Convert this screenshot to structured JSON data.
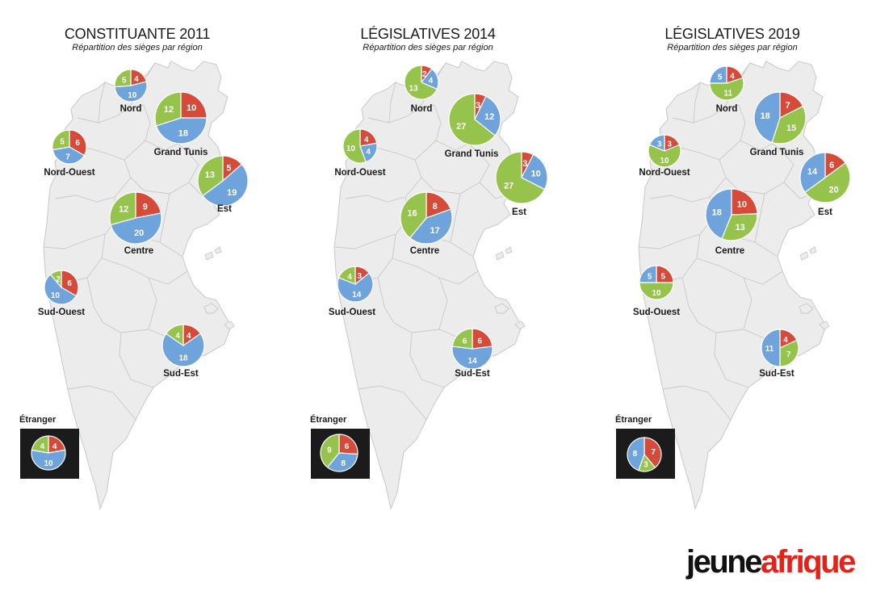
{
  "colors": {
    "green": "#95c34b",
    "blue": "#6fa3db",
    "red": "#d64a3a",
    "map_fill": "#ececec",
    "map_stroke": "#c8c8c8",
    "box": "#1b1b1b"
  },
  "logo": {
    "part1": "jeune",
    "part2": "afrique"
  },
  "maps": [
    {
      "title": "CONSTITUANTE 2011",
      "subtitle": "Répartition des sièges par région",
      "regions": [
        {
          "name": "Nord",
          "slices": [
            {
              "party": "red",
              "value": 4
            },
            {
              "party": "blue",
              "value": 10
            },
            {
              "party": "green",
              "value": 5
            }
          ]
        },
        {
          "name": "Grand Tunis",
          "slices": [
            {
              "party": "red",
              "value": 10
            },
            {
              "party": "blue",
              "value": 18
            },
            {
              "party": "green",
              "value": 12
            }
          ]
        },
        {
          "name": "Nord-Ouest",
          "slices": [
            {
              "party": "red",
              "value": 6
            },
            {
              "party": "blue",
              "value": 7
            },
            {
              "party": "green",
              "value": 5
            }
          ]
        },
        {
          "name": "Est",
          "slices": [
            {
              "party": "red",
              "value": 5
            },
            {
              "party": "blue",
              "value": 19
            },
            {
              "party": "green",
              "value": 13
            }
          ]
        },
        {
          "name": "Centre",
          "slices": [
            {
              "party": "red",
              "value": 9
            },
            {
              "party": "blue",
              "value": 20
            },
            {
              "party": "green",
              "value": 12
            }
          ]
        },
        {
          "name": "Sud-Ouest",
          "slices": [
            {
              "party": "red",
              "value": 6
            },
            {
              "party": "blue",
              "value": 10
            },
            {
              "party": "green",
              "value": 2
            }
          ]
        },
        {
          "name": "Sud-Est",
          "slices": [
            {
              "party": "red",
              "value": 4
            },
            {
              "party": "blue",
              "value": 18
            },
            {
              "party": "green",
              "value": 4
            }
          ]
        },
        {
          "name": "Étranger",
          "slices": [
            {
              "party": "red",
              "value": 4
            },
            {
              "party": "blue",
              "value": 10
            },
            {
              "party": "green",
              "value": 4
            }
          ]
        }
      ]
    },
    {
      "title": "LÉGISLATIVES 2014",
      "subtitle": "Répartition des sièges par région",
      "regions": [
        {
          "name": "Nord",
          "slices": [
            {
              "party": "red",
              "value": 2
            },
            {
              "party": "blue",
              "value": 4
            },
            {
              "party": "green",
              "value": 13
            }
          ]
        },
        {
          "name": "Grand Tunis",
          "slices": [
            {
              "party": "red",
              "value": 3
            },
            {
              "party": "blue",
              "value": 12
            },
            {
              "party": "green",
              "value": 27
            }
          ]
        },
        {
          "name": "Nord-Ouest",
          "slices": [
            {
              "party": "red",
              "value": 4
            },
            {
              "party": "blue",
              "value": 4
            },
            {
              "party": "green",
              "value": 10
            }
          ]
        },
        {
          "name": "Est",
          "slices": [
            {
              "party": "red",
              "value": 3
            },
            {
              "party": "blue",
              "value": 10
            },
            {
              "party": "green",
              "value": 27
            }
          ]
        },
        {
          "name": "Centre",
          "slices": [
            {
              "party": "red",
              "value": 8
            },
            {
              "party": "blue",
              "value": 17
            },
            {
              "party": "green",
              "value": 16
            }
          ]
        },
        {
          "name": "Sud-Ouest",
          "slices": [
            {
              "party": "red",
              "value": 3
            },
            {
              "party": "blue",
              "value": 14
            },
            {
              "party": "green",
              "value": 4
            }
          ]
        },
        {
          "name": "Sud-Est",
          "slices": [
            {
              "party": "red",
              "value": 6
            },
            {
              "party": "blue",
              "value": 14
            },
            {
              "party": "green",
              "value": 6
            }
          ]
        },
        {
          "name": "Étranger",
          "slices": [
            {
              "party": "red",
              "value": 6
            },
            {
              "party": "blue",
              "value": 8
            },
            {
              "party": "green",
              "value": 9
            }
          ]
        }
      ]
    },
    {
      "title": "LÉGISLATIVES 2019",
      "subtitle": "Répartition des sièges par région",
      "regions": [
        {
          "name": "Nord",
          "slices": [
            {
              "party": "red",
              "value": 4
            },
            {
              "party": "green",
              "value": 11
            },
            {
              "party": "blue",
              "value": 5
            }
          ]
        },
        {
          "name": "Grand Tunis",
          "slices": [
            {
              "party": "red",
              "value": 7
            },
            {
              "party": "green",
              "value": 15
            },
            {
              "party": "blue",
              "value": 18
            }
          ]
        },
        {
          "name": "Nord-Ouest",
          "slices": [
            {
              "party": "red",
              "value": 3
            },
            {
              "party": "green",
              "value": 10
            },
            {
              "party": "blue",
              "value": 3
            }
          ]
        },
        {
          "name": "Est",
          "slices": [
            {
              "party": "red",
              "value": 6
            },
            {
              "party": "green",
              "value": 20
            },
            {
              "party": "blue",
              "value": 14
            }
          ]
        },
        {
          "name": "Centre",
          "slices": [
            {
              "party": "red",
              "value": 10
            },
            {
              "party": "green",
              "value": 13
            },
            {
              "party": "blue",
              "value": 18
            }
          ]
        },
        {
          "name": "Sud-Ouest",
          "slices": [
            {
              "party": "red",
              "value": 5
            },
            {
              "party": "green",
              "value": 10
            },
            {
              "party": "blue",
              "value": 5
            }
          ]
        },
        {
          "name": "Sud-Est",
          "slices": [
            {
              "party": "red",
              "value": 4
            },
            {
              "party": "green",
              "value": 7
            },
            {
              "party": "blue",
              "value": 11
            }
          ]
        },
        {
          "name": "Étranger",
          "slices": [
            {
              "party": "red",
              "value": 7
            },
            {
              "party": "green",
              "value": 3
            },
            {
              "party": "blue",
              "value": 8
            }
          ]
        }
      ]
    }
  ]
}
